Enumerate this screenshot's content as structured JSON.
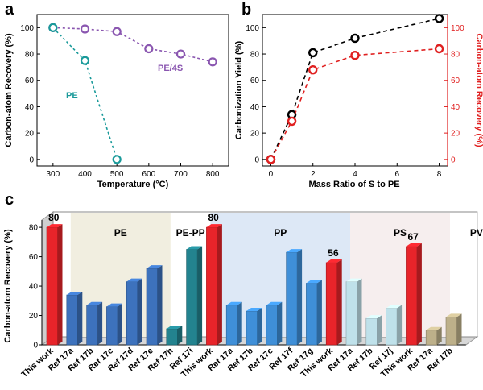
{
  "chart_data": [
    {
      "panel": "a",
      "type": "line",
      "xlabel": "Temperature (°C)",
      "ylabel": "Carbon-atom Recovery (%)",
      "xlim": [
        250,
        850
      ],
      "ylim": [
        -5,
        110
      ],
      "xticks": [
        300,
        400,
        500,
        600,
        700,
        800
      ],
      "yticks": [
        0,
        20,
        40,
        60,
        80,
        100
      ],
      "series": [
        {
          "name": "PE/4S",
          "color": "#8a56b0",
          "x": [
            300,
            400,
            500,
            600,
            700,
            800
          ],
          "values": [
            100,
            99,
            97,
            84,
            80,
            74
          ]
        },
        {
          "name": "PE",
          "color": "#1a9a9a",
          "x": [
            300,
            400,
            500
          ],
          "values": [
            100,
            75,
            0
          ]
        }
      ]
    },
    {
      "panel": "b",
      "type": "line",
      "xlabel": "Mass Ratio of S to PE",
      "ylabel": "Carbonization Yield (%)",
      "y2label": "Carbon-atom Recovery (%)",
      "xlim": [
        -0.4,
        8.4
      ],
      "ylim": [
        -5,
        110
      ],
      "xticks": [
        0,
        2,
        4,
        6,
        8
      ],
      "yticks": [
        0,
        20,
        40,
        60,
        80,
        100
      ],
      "series": [
        {
          "name": "Carbonization Yield",
          "color": "#000000",
          "axis": "left",
          "x": [
            0,
            1,
            2,
            4,
            8
          ],
          "values": [
            0,
            34,
            81,
            92,
            107
          ]
        },
        {
          "name": "Carbon-atom Recovery",
          "color": "#e02020",
          "axis": "right",
          "x": [
            0,
            1,
            2,
            4,
            8
          ],
          "values": [
            0,
            29,
            68,
            79,
            84
          ]
        }
      ]
    },
    {
      "panel": "c",
      "type": "bar",
      "ylabel": "Carbon-atom Recovery (%)",
      "ylim": [
        0,
        85
      ],
      "yticks": [
        0,
        20,
        40,
        60,
        80
      ],
      "groups": [
        {
          "name": "PE",
          "start": 1,
          "end": 5
        },
        {
          "name": "PE-PP",
          "start": 6,
          "end": 7
        },
        {
          "name": "PP",
          "start": 8,
          "end": 14
        },
        {
          "name": "PS",
          "start": 15,
          "end": 19
        },
        {
          "name": "PVC",
          "start": 20,
          "end": 22
        }
      ],
      "categories": [
        "This work",
        "Ref 17a",
        "Ref 17b",
        "Ref 17c",
        "Ref 17d",
        "Ref 17e",
        "Ref 17h",
        "Ref 17i",
        "This work",
        "Ref 17a",
        "Ref 17b",
        "Ref 17c",
        "Ref 17f",
        "Ref 17g",
        "This work",
        "Ref 17a",
        "Ref 17b",
        "Ref 17j",
        "This work",
        "Ref 17a",
        "Ref 17b"
      ],
      "values": [
        80,
        34,
        27,
        26,
        43,
        52,
        11,
        65,
        80,
        27,
        23,
        27,
        63,
        42,
        56,
        43,
        18,
        25,
        67,
        10,
        19
      ],
      "value_labels": [
        "80",
        "",
        "",
        "",
        "",
        "",
        "",
        "",
        "80",
        "",
        "",
        "",
        "",
        "",
        "56",
        "",
        "",
        "",
        "67",
        "",
        ""
      ],
      "group_of_bar": [
        "PE",
        "PE",
        "PE",
        "PE",
        "PE",
        "PE",
        "PE-PP",
        "PE-PP",
        "PP",
        "PP",
        "PP",
        "PP",
        "PP",
        "PP",
        "PS",
        "PS",
        "PS",
        "PS",
        "PVC",
        "PVC",
        "PVC"
      ]
    }
  ],
  "colors": {
    "this_work": "#e8242a",
    "PE": "#3d72bd",
    "PE-PP": "#23838f",
    "PP": "#3f8fd8",
    "PS": "#bfe1ea",
    "PVC": "#bdb08a",
    "group_bg_PE": "#f1eee0",
    "group_bg_PP": "#dde8f6",
    "group_bg_PS": "#f6eeee"
  }
}
